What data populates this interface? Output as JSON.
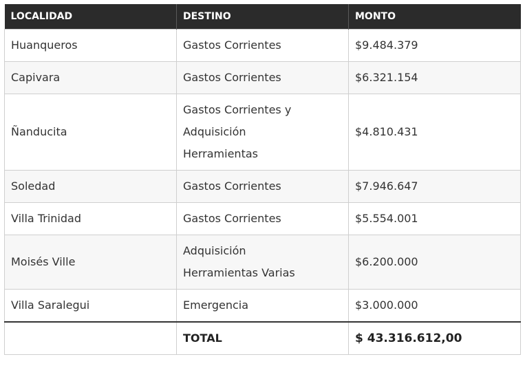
{
  "table": {
    "headers": [
      "LOCALIDAD",
      "DESTINO",
      "MONTO"
    ],
    "rows": [
      {
        "localidad": "Huanqueros",
        "destino": "Gastos Corrientes",
        "monto": "$9.484.379"
      },
      {
        "localidad": "Capivara",
        "destino": "Gastos Corrientes",
        "monto": "$6.321.154"
      },
      {
        "localidad": "Ñanducita",
        "destino": "Gastos Corrientes y\nAdquisición\nHerramientas",
        "monto": "$4.810.431"
      },
      {
        "localidad": "Soledad",
        "destino": "Gastos Corrientes",
        "monto": "$7.946.647"
      },
      {
        "localidad": "Villa Trinidad",
        "destino": "Gastos Corrientes",
        "monto": "$5.554.001"
      },
      {
        "localidad": "Moisés Ville",
        "destino": "Adquisición\nHerramientas Varias",
        "monto": "$6.200.000"
      },
      {
        "localidad": "Villa Saralegui",
        "destino": "Emergencia",
        "monto": "$3.000.000"
      }
    ],
    "total": {
      "localidad": "",
      "label": "TOTAL",
      "monto": "$ 43.316.612,00"
    }
  }
}
